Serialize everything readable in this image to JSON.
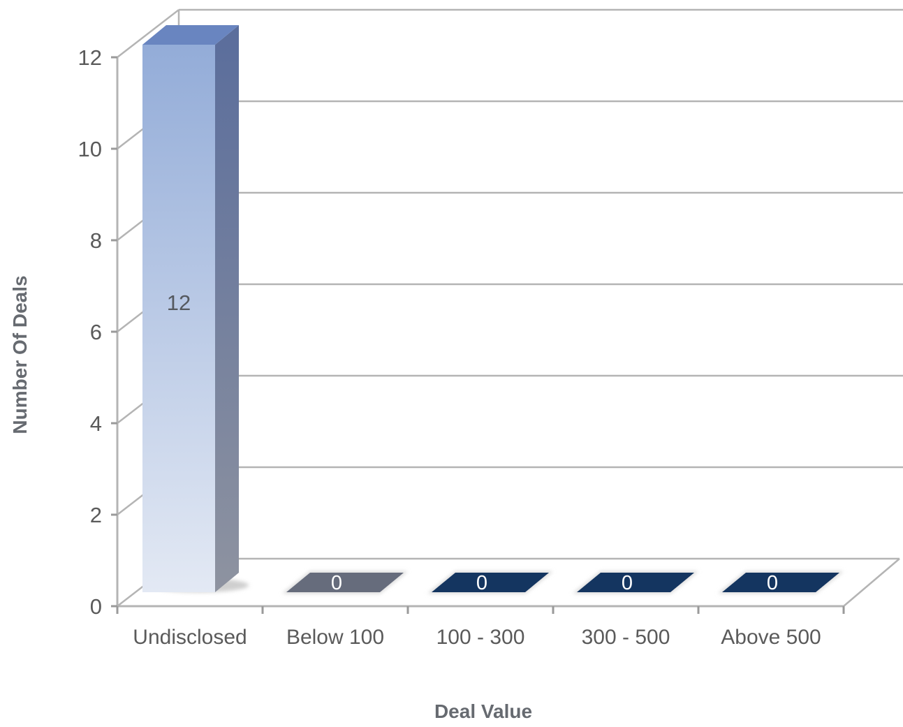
{
  "chart_data": {
    "type": "bar",
    "xlabel": "Deal Value",
    "ylabel": "Number Of Deals",
    "categories": [
      "Undisclosed",
      "Below 100",
      "100 - 300",
      "300 - 500",
      "Above 500"
    ],
    "values": [
      12,
      0,
      0,
      0,
      0
    ],
    "value_labels": [
      "12",
      "0",
      "0",
      "0",
      "0"
    ],
    "ylim": [
      0,
      12
    ],
    "yticks": [
      0,
      2,
      4,
      6,
      8,
      10,
      12
    ],
    "ytick_labels": [
      "0",
      "2",
      "4",
      "6",
      "8",
      "10",
      "12"
    ],
    "grid": true,
    "style": "3d-column",
    "bar_colors": {
      "first_top": "#93acd8",
      "first_bottom": "#e3e9f4",
      "first_side": "#5d6f9a",
      "below100": "#666c7c",
      "others": "#143560"
    }
  }
}
